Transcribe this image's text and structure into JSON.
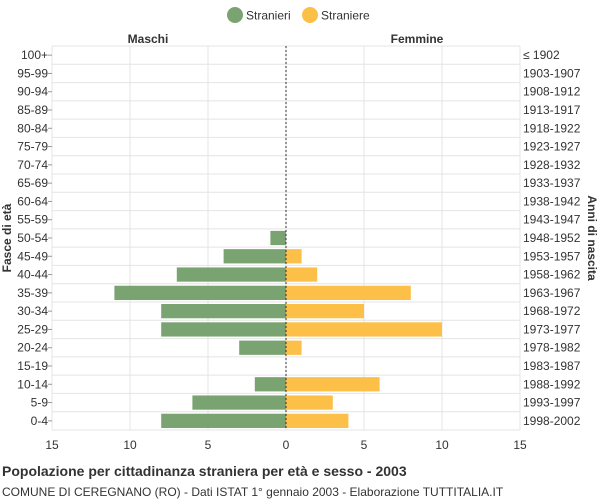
{
  "chart_data": {
    "type": "bar",
    "orientation": "horizontal",
    "title": "Popolazione per cittadinanza straniera per età e sesso - 2003",
    "subtitle": "COMUNE DI CEREGNANO (RO) - Dati ISTAT 1° gennaio 2003 - Elaborazione TUTTITALIA.IT",
    "ylabel_left": "Fasce di età",
    "ylabel_right": "Anni di nascita",
    "side_labels": {
      "left": "Maschi",
      "right": "Femmine"
    },
    "legend": {
      "position": "top-center",
      "entries": [
        {
          "name": "Stranieri",
          "color": "#7aa372"
        },
        {
          "name": "Straniere",
          "color": "#fcbf47"
        }
      ]
    },
    "xlim": [
      -15,
      15
    ],
    "x_ticks": [
      "15",
      "10",
      "5",
      "0",
      "5",
      "10",
      "15"
    ],
    "grid": true,
    "categories": [
      "100+",
      "95-99",
      "90-94",
      "85-89",
      "80-84",
      "75-79",
      "70-74",
      "65-69",
      "60-64",
      "55-59",
      "50-54",
      "45-49",
      "40-44",
      "35-39",
      "30-34",
      "25-29",
      "20-24",
      "15-19",
      "10-14",
      "5-9",
      "0-4"
    ],
    "birth_years": [
      "≤ 1902",
      "1903-1907",
      "1908-1912",
      "1913-1917",
      "1918-1922",
      "1923-1927",
      "1928-1932",
      "1933-1937",
      "1938-1942",
      "1943-1947",
      "1948-1952",
      "1953-1957",
      "1958-1962",
      "1963-1967",
      "1968-1972",
      "1973-1977",
      "1978-1982",
      "1983-1987",
      "1988-1992",
      "1993-1997",
      "1998-2002"
    ],
    "series": [
      {
        "name": "Stranieri",
        "color": "#7aa372",
        "values": [
          0,
          0,
          0,
          0,
          0,
          0,
          0,
          0,
          0,
          0,
          1,
          4,
          7,
          11,
          8,
          8,
          3,
          0,
          2,
          6,
          8
        ]
      },
      {
        "name": "Straniere",
        "color": "#fcbf47",
        "values": [
          0,
          0,
          0,
          0,
          0,
          0,
          0,
          0,
          0,
          0,
          0,
          1,
          2,
          8,
          5,
          10,
          1,
          0,
          6,
          3,
          4
        ]
      }
    ]
  }
}
